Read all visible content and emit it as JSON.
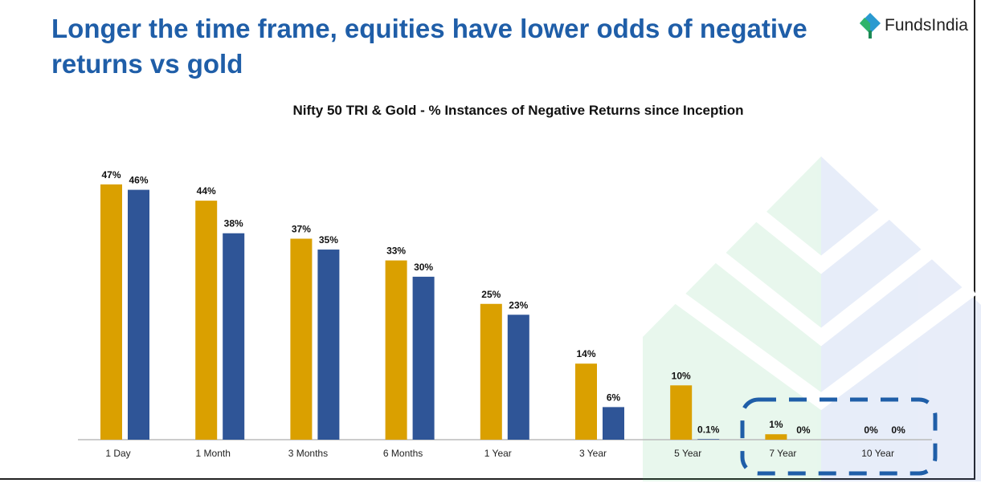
{
  "header": {
    "title": "Longer the time frame, equities have lower odds of negative returns vs gold",
    "logo_text": "FundsIndia"
  },
  "colors": {
    "title": "#1f5ea8",
    "series1": "#daa000",
    "series2": "#2f5597",
    "highlight_box": "#1f5ea8"
  },
  "chart_data": {
    "type": "bar",
    "title": "Nifty 50 TRI & Gold - % Instances of Negative Returns since Inception",
    "xlabel": "",
    "ylabel": "",
    "categories": [
      "1 Day",
      "1 Month",
      "3 Months",
      "6 Months",
      "1 Year",
      "3 Year",
      "5 Year",
      "7 Year",
      "10 Year"
    ],
    "series": [
      {
        "values": [
          47,
          44,
          37,
          33,
          25,
          14,
          10,
          1,
          0
        ],
        "labels": [
          "47%",
          "44%",
          "37%",
          "33%",
          "25%",
          "14%",
          "10%",
          "1%",
          "0%"
        ]
      },
      {
        "values": [
          46,
          38,
          35,
          30,
          23,
          6,
          0.1,
          0,
          0
        ],
        "labels": [
          "46%",
          "38%",
          "35%",
          "30%",
          "23%",
          "6%",
          "0.1%",
          "0%",
          "0%"
        ]
      }
    ],
    "ylim": [
      0,
      50
    ],
    "grid": false,
    "legend": "none",
    "highlighted_categories": [
      "7 Year",
      "10 Year"
    ]
  }
}
